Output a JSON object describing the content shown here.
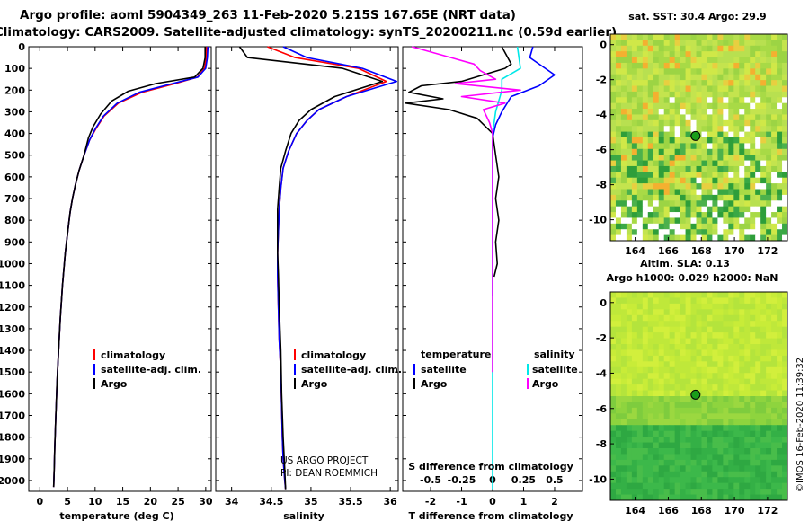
{
  "title_line1": "Argo profile: aoml 5904349_263 11-Feb-2020 5.215S 167.65E (NRT data)",
  "title_line2": "Climatology: CARS2009. Satellite-adjusted climatology: synTS_20200211.nc (0.59d earlier)",
  "footer_credit_1": "US ARGO PROJECT",
  "footer_credit_2": "PI: DEAN ROEMMICH",
  "imos_stamp": "©IMOS 16-Feb-2020 11:39:32",
  "colors": {
    "climatology": "#ff0000",
    "satellite": "#0000ff",
    "argo": "#000000",
    "salinity_satellite": "#00e8e8",
    "salinity_argo": "#ff00ff"
  },
  "chart_data": [
    {
      "type": "line",
      "id": "temperature_profile",
      "xlabel": "temperature (deg C)",
      "xlim": [
        -2,
        31
      ],
      "ylim": [
        2050,
        0
      ],
      "xticks": [
        0,
        5,
        10,
        15,
        20,
        25,
        30
      ],
      "xtick_labels": [
        "0",
        "5",
        "10",
        "15",
        "20",
        "25",
        "30"
      ],
      "yticks": [
        0,
        100,
        200,
        300,
        400,
        500,
        600,
        700,
        800,
        900,
        1000,
        1100,
        1200,
        1300,
        1400,
        1500,
        1600,
        1700,
        1800,
        1900,
        2000
      ],
      "ytick_labels": [
        "0",
        "100",
        "200",
        "300",
        "400",
        "500",
        "600",
        "700",
        "800",
        "900",
        "1000",
        "1100",
        "1200",
        "1300",
        "1400",
        "1500",
        "1600",
        "1700",
        "1800",
        "1900",
        "2000"
      ],
      "legend": [
        "climatology",
        "satellite-adj. clim.",
        "Argo"
      ],
      "series": [
        {
          "name": "climatology",
          "x": [
            30.2,
            30.1,
            29.8,
            28.5,
            24.5,
            18.5,
            14.2,
            11.6,
            10.1,
            9.0,
            8.0,
            7.1,
            6.4,
            5.9,
            5.5,
            5.2,
            4.6,
            4.1,
            3.7,
            3.4,
            3.1,
            2.9,
            2.7,
            2.6,
            2.5
          ],
          "y": [
            0,
            50,
            100,
            140,
            170,
            210,
            260,
            320,
            380,
            430,
            500,
            570,
            640,
            700,
            760,
            820,
            950,
            1100,
            1250,
            1400,
            1550,
            1700,
            1850,
            1950,
            2030
          ]
        },
        {
          "name": "satellite-adj. clim.",
          "x": [
            30.4,
            30.3,
            30.0,
            28.6,
            24.0,
            18.0,
            14.0,
            11.5,
            10.0,
            9.0,
            8.0,
            7.1,
            6.4,
            5.9,
            5.5,
            5.2,
            4.6,
            4.1,
            3.7,
            3.4,
            3.1,
            2.9,
            2.7,
            2.6,
            2.5
          ],
          "y": [
            0,
            50,
            100,
            140,
            170,
            210,
            260,
            320,
            380,
            430,
            500,
            570,
            640,
            700,
            760,
            820,
            950,
            1100,
            1250,
            1400,
            1550,
            1700,
            1850,
            1950,
            2030
          ]
        },
        {
          "name": "Argo",
          "x": [
            29.9,
            29.9,
            29.5,
            28.0,
            21.0,
            16.0,
            13.0,
            11.0,
            9.6,
            8.8,
            8.0,
            7.1,
            6.4,
            5.9,
            5.5,
            5.2,
            4.6,
            4.1,
            3.7,
            3.4,
            3.1,
            2.9,
            2.7,
            2.6,
            2.5
          ],
          "y": [
            0,
            50,
            100,
            140,
            170,
            205,
            250,
            310,
            370,
            420,
            500,
            570,
            640,
            700,
            760,
            820,
            950,
            1100,
            1250,
            1400,
            1550,
            1700,
            1850,
            1950,
            2030
          ]
        }
      ]
    },
    {
      "type": "line",
      "id": "salinity_profile",
      "xlabel": "salinity",
      "xlim": [
        33.8,
        36.1
      ],
      "ylim": [
        2050,
        0
      ],
      "xticks": [
        34,
        34.5,
        35,
        35.5,
        36
      ],
      "xtick_labels": [
        "34",
        "34.5",
        "35",
        "35.5",
        "36"
      ],
      "legend": [
        "climatology",
        "satellite-adj. clim.",
        "Argo"
      ],
      "series": [
        {
          "name": "climatology",
          "x": [
            34.45,
            34.8,
            35.6,
            35.95,
            35.45,
            35.1,
            34.95,
            34.82,
            34.72,
            34.65,
            34.62,
            34.6,
            34.59,
            34.58,
            34.58,
            34.59,
            34.6,
            34.62,
            34.63,
            34.64,
            34.65,
            34.66,
            34.67,
            34.68
          ],
          "y": [
            0,
            50,
            100,
            160,
            230,
            290,
            340,
            400,
            480,
            560,
            650,
            750,
            850,
            950,
            1050,
            1200,
            1350,
            1500,
            1650,
            1800,
            1900,
            1950,
            2000,
            2040
          ]
        },
        {
          "name": "satellite-adj. clim.",
          "x": [
            34.65,
            34.95,
            35.65,
            36.08,
            35.45,
            35.1,
            34.95,
            34.82,
            34.72,
            34.65,
            34.62,
            34.6,
            34.59,
            34.58,
            34.58,
            34.59,
            34.6,
            34.62,
            34.63,
            34.64,
            34.65,
            34.66,
            34.67,
            34.68
          ],
          "y": [
            0,
            50,
            100,
            160,
            230,
            290,
            340,
            400,
            480,
            560,
            650,
            750,
            850,
            950,
            1050,
            1200,
            1350,
            1500,
            1650,
            1800,
            1900,
            1950,
            2000,
            2040
          ]
        },
        {
          "name": "Argo",
          "x": [
            34.1,
            34.2,
            35.4,
            35.9,
            35.3,
            35.0,
            34.85,
            34.75,
            34.68,
            34.62,
            34.6,
            34.58,
            34.58,
            34.58,
            34.59,
            34.6,
            34.62,
            34.63,
            34.65,
            34.67,
            34.68
          ],
          "y": [
            0,
            50,
            100,
            160,
            230,
            290,
            340,
            400,
            480,
            560,
            650,
            750,
            850,
            950,
            1050,
            1200,
            1400,
            1600,
            1800,
            1950,
            2040
          ]
        }
      ]
    },
    {
      "type": "line",
      "id": "difference_profile",
      "xlabel": "T difference from climatology",
      "xlabel2": "S difference from climatology",
      "xlim": [
        -2.9,
        2.9
      ],
      "ylim": [
        2050,
        0
      ],
      "xticks": [
        -2,
        -1,
        0,
        1,
        2
      ],
      "xtick_labels": [
        "-2",
        "-1",
        "0",
        "1",
        "2"
      ],
      "xticks2": [
        -0.5,
        -0.25,
        0,
        0.25,
        0.5
      ],
      "xtick2_labels": [
        "-0.5",
        "-0.25",
        "0",
        "0.25",
        "0.5"
      ],
      "x2_scale": 4,
      "legend_temperature_title": "temperature",
      "legend_salinity_title": "salinity",
      "legend_items": [
        "satellite",
        "Argo",
        "satellite",
        "Argo"
      ],
      "series": [
        {
          "name": "temperature satellite",
          "x": [
            1.3,
            1.2,
            2.0,
            1.5,
            0.6,
            0.3,
            0.1,
            0.0,
            0.0,
            0.0,
            0.0,
            0.0,
            0.0,
            0.0,
            0.0,
            0.0,
            0.0
          ],
          "y": [
            0,
            50,
            130,
            180,
            230,
            300,
            360,
            420,
            500,
            600,
            700,
            800,
            900,
            1000,
            1050,
            1100,
            1150
          ]
        },
        {
          "name": "temperature Argo",
          "x": [
            0.3,
            0.6,
            0.4,
            -1.0,
            -2.3,
            -2.7,
            -1.6,
            -2.8,
            -1.4,
            -0.5,
            0.0,
            0.1,
            0.2,
            0.1,
            0.2,
            0.1,
            0.15,
            0.05
          ],
          "y": [
            0,
            80,
            100,
            160,
            180,
            210,
            240,
            260,
            290,
            330,
            400,
            500,
            600,
            700,
            800,
            900,
            1000,
            1060
          ]
        },
        {
          "name": "salinity satellite",
          "x": [
            0.8,
            0.9,
            0.3,
            0.3,
            0.1,
            0.0,
            0.0,
            0.0,
            0.0,
            0.0,
            0.0,
            0.0,
            0.0,
            0.0,
            0.0
          ],
          "y": [
            0,
            100,
            150,
            200,
            300,
            400,
            500,
            700,
            900,
            1100,
            1300,
            1500,
            1700,
            1900,
            2040
          ]
        },
        {
          "name": "salinity Argo",
          "x": [
            -2.6,
            -0.6,
            -0.4,
            0.1,
            -1.2,
            0.9,
            -1.0,
            0.4,
            -0.3,
            -0.1,
            0.0,
            0.0,
            0.0,
            0.0,
            0.0,
            0.0,
            0.0
          ],
          "y": [
            0,
            80,
            110,
            150,
            170,
            200,
            230,
            260,
            290,
            350,
            400,
            500,
            700,
            900,
            1100,
            1300,
            1500
          ]
        }
      ]
    },
    {
      "type": "heatmap",
      "id": "sst_map",
      "title": "sat. SST: 30.4 Argo: 29.9",
      "xlim": [
        162.5,
        173.2
      ],
      "ylim": [
        -11.2,
        0.6
      ],
      "xticks": [
        164,
        166,
        168,
        170,
        172
      ],
      "xtick_labels": [
        "164",
        "166",
        "168",
        "170",
        "172"
      ],
      "yticks": [
        0,
        -2,
        -4,
        -6,
        -8,
        -10
      ],
      "ytick_labels": [
        "0",
        "-2",
        "-4",
        "-6",
        "-8",
        "-10"
      ],
      "marker": {
        "lon": 167.65,
        "lat": -5.215
      }
    },
    {
      "type": "heatmap",
      "id": "sla_map",
      "title_line1": "Altim. SLA: 0.13",
      "title_line2": "Argo h1000: 0.029 h2000: NaN",
      "xlim": [
        162.5,
        173.2
      ],
      "ylim": [
        -11.2,
        0.6
      ],
      "xticks": [
        164,
        166,
        168,
        170,
        172
      ],
      "xtick_labels": [
        "164",
        "166",
        "168",
        "170",
        "172"
      ],
      "yticks": [
        0,
        -2,
        -4,
        -6,
        -8,
        -10
      ],
      "ytick_labels": [
        "0",
        "-2",
        "-4",
        "-6",
        "-8",
        "-10"
      ],
      "marker": {
        "lon": 167.65,
        "lat": -5.215
      }
    }
  ]
}
